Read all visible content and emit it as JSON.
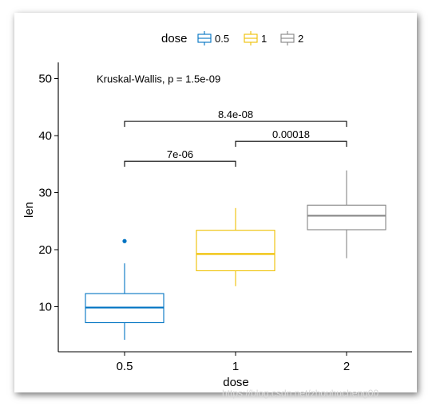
{
  "chart_data": {
    "type": "boxplot",
    "xlabel": "dose",
    "ylabel": "len",
    "ylim": [
      2.5,
      52
    ],
    "yticks": [
      10,
      20,
      30,
      40,
      50
    ],
    "categories": [
      "0.5",
      "1",
      "2"
    ],
    "legend": {
      "title": "dose",
      "position": "top",
      "entries": [
        "0.5",
        "1",
        "2"
      ]
    },
    "colors": {
      "0.5": "#0073C2",
      "1": "#EFC000",
      "2": "#868686"
    },
    "boxes": [
      {
        "category": "0.5",
        "min": 4.2,
        "q1": 7.2,
        "median": 9.85,
        "q3": 12.3,
        "max": 17.6,
        "outliers": [
          21.5
        ]
      },
      {
        "category": "1",
        "min": 13.6,
        "q1": 16.3,
        "median": 19.25,
        "q3": 23.4,
        "max": 27.3,
        "outliers": []
      },
      {
        "category": "2",
        "min": 18.5,
        "q1": 23.5,
        "median": 25.95,
        "q3": 27.8,
        "max": 33.9,
        "outliers": []
      }
    ],
    "global_test": {
      "text": "Kruskal-Wallis, p = 1.5e-09",
      "y": 50
    },
    "comparisons": [
      {
        "from": "0.5",
        "to": "1",
        "label": "7e-06",
        "y": 35.5
      },
      {
        "from": "1",
        "to": "2",
        "label": "0.00018",
        "y": 39.0
      },
      {
        "from": "0.5",
        "to": "2",
        "label": "8.4e-08",
        "y": 42.5
      }
    ]
  },
  "watermark": "https://blog.csdn.net/zhouhucheng00"
}
